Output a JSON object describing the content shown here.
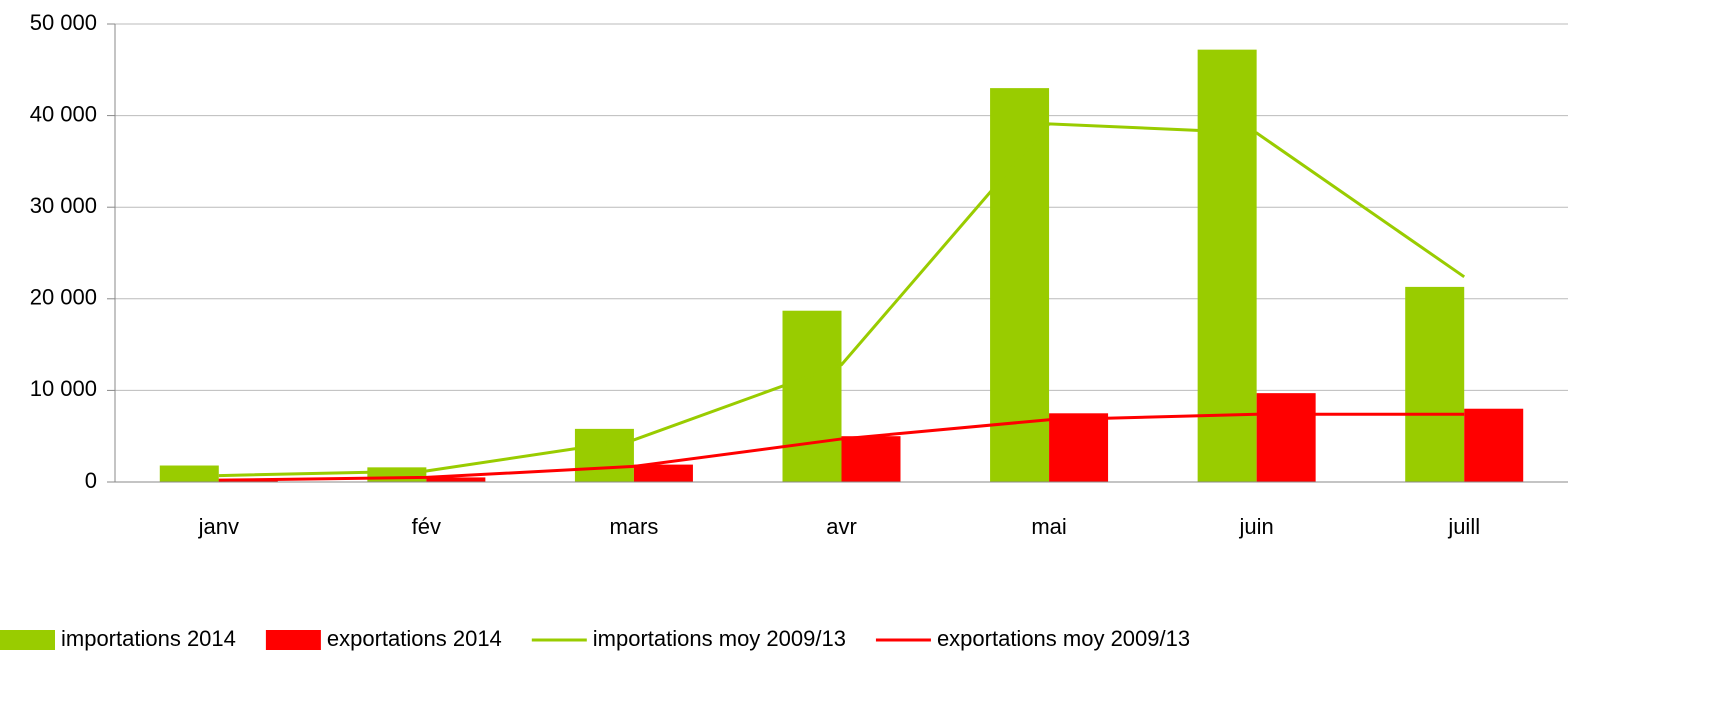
{
  "chart_data": {
    "type": "bar_line",
    "categories": [
      "janv",
      "fév",
      "mars",
      "avr",
      "mai",
      "juin",
      "juill"
    ],
    "series": [
      {
        "name": "importations 2014",
        "kind": "bar",
        "color": "#99cc00",
        "values": [
          1800,
          1600,
          5800,
          18700,
          43000,
          47200,
          21300
        ]
      },
      {
        "name": "exportations 2014",
        "kind": "bar",
        "color": "#ff0000",
        "values": [
          300,
          500,
          1900,
          5000,
          7500,
          9700,
          8000
        ]
      },
      {
        "name": "importations moy 2009/13",
        "kind": "line",
        "color": "#99cc00",
        "values": [
          700,
          1200,
          4600,
          12800,
          39100,
          38100,
          22400
        ]
      },
      {
        "name": "exportations moy 2009/13",
        "kind": "line",
        "color": "#ff0000",
        "values": [
          200,
          500,
          1700,
          4700,
          6800,
          7400,
          7400
        ]
      }
    ],
    "ylim": [
      0,
      50000
    ],
    "yticks": [
      0,
      {
        "value": 10000,
        "label": "10 000"
      },
      {
        "value": 20000,
        "label": "20 000"
      },
      {
        "value": 30000,
        "label": "30 000"
      },
      {
        "value": 40000,
        "label": "40 000"
      },
      {
        "value": 50000,
        "label": "50 000"
      }
    ],
    "grid": true,
    "legend": "bottom"
  }
}
